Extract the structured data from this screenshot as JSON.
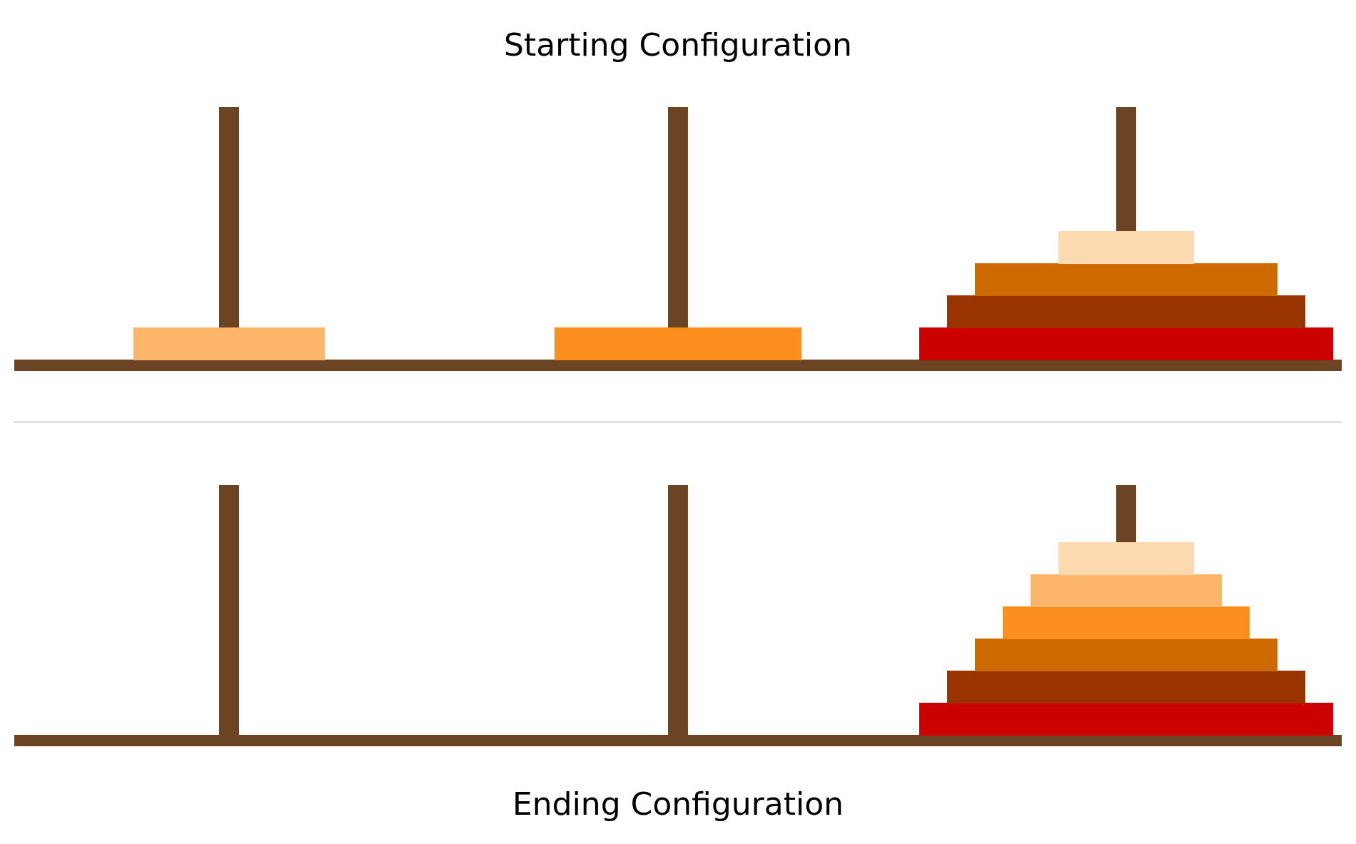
{
  "titles": {
    "start": "Starting Configuration",
    "end": "Ending Configuration"
  },
  "colors": {
    "wood": "#6b4423",
    "divider": "#999999",
    "disks": {
      "1": "#fdd9b0",
      "2": "#fdb56a",
      "3": "#fd8f1e",
      "4": "#cc6a00",
      "5": "#993300",
      "6": "#cc0000"
    }
  },
  "disk_count": 6,
  "peg_count": 3,
  "configurations": {
    "start": {
      "pegs": [
        [
          2
        ],
        [
          3
        ],
        [
          6,
          5,
          4,
          1
        ]
      ]
    },
    "end": {
      "pegs": [
        [],
        [],
        [
          6,
          5,
          4,
          3,
          2,
          1
        ]
      ]
    }
  }
}
